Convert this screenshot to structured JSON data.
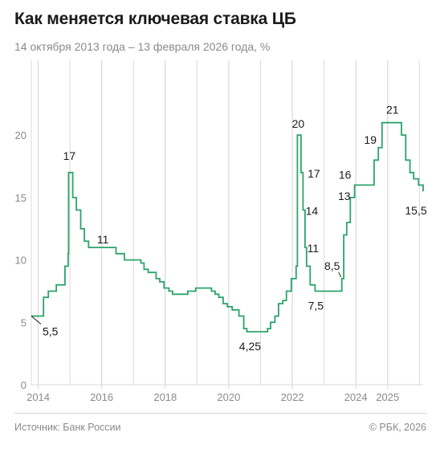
{
  "header": {
    "title": "Как меняется ключевая ставка ЦБ",
    "subtitle": "14 октября 2013 года – 13 февраля 2026 года, %"
  },
  "footer": {
    "source": "Источник: Банк России",
    "copyright": "© РБК, 2026"
  },
  "colors": {
    "line": "#2ca46a",
    "grid": "#d9d9d9",
    "axis": "#8a8a8a",
    "text": "#1a1a1a"
  },
  "chart_data": {
    "type": "line",
    "title": "Как меняется ключевая ставка ЦБ",
    "subtitle": "14 октября 2013 года – 13 февраля 2026 года, %",
    "step": true,
    "xlim": [
      "2013-10-14",
      "2026-02-13"
    ],
    "ylim": [
      0,
      26
    ],
    "yticks": [
      0,
      5,
      10,
      15,
      20
    ],
    "xticks": [
      {
        "date": "2014-01-01",
        "label": "2014"
      },
      {
        "date": "2016-01-01",
        "label": "2016"
      },
      {
        "date": "2018-01-01",
        "label": "2018"
      },
      {
        "date": "2020-01-01",
        "label": "2020"
      },
      {
        "date": "2022-01-01",
        "label": "2022"
      },
      {
        "date": "2024-01-01",
        "label": "2024"
      },
      {
        "date": "2025-01-01",
        "label": "2025"
      }
    ],
    "grid": true,
    "series": [
      {
        "points": [
          [
            "2013-10-14",
            5.5
          ],
          [
            "2014-03-03",
            7.0
          ],
          [
            "2014-04-28",
            7.5
          ],
          [
            "2014-07-28",
            8.0
          ],
          [
            "2014-11-05",
            9.5
          ],
          [
            "2014-12-12",
            10.5
          ],
          [
            "2014-12-16",
            17.0
          ],
          [
            "2015-02-02",
            15.0
          ],
          [
            "2015-03-16",
            14.0
          ],
          [
            "2015-05-05",
            12.5
          ],
          [
            "2015-06-16",
            11.5
          ],
          [
            "2015-08-03",
            11.0
          ],
          [
            "2016-06-14",
            10.5
          ],
          [
            "2016-09-19",
            10.0
          ],
          [
            "2017-03-27",
            9.75
          ],
          [
            "2017-05-02",
            9.25
          ],
          [
            "2017-06-19",
            9.0
          ],
          [
            "2017-09-18",
            8.5
          ],
          [
            "2017-10-30",
            8.25
          ],
          [
            "2017-12-18",
            7.75
          ],
          [
            "2018-02-12",
            7.5
          ],
          [
            "2018-03-26",
            7.25
          ],
          [
            "2018-09-17",
            7.5
          ],
          [
            "2018-12-17",
            7.75
          ],
          [
            "2019-06-17",
            7.5
          ],
          [
            "2019-07-29",
            7.25
          ],
          [
            "2019-09-09",
            7.0
          ],
          [
            "2019-10-28",
            6.5
          ],
          [
            "2019-12-16",
            6.25
          ],
          [
            "2020-02-10",
            6.0
          ],
          [
            "2020-04-27",
            5.5
          ],
          [
            "2020-06-22",
            4.5
          ],
          [
            "2020-07-27",
            4.25
          ],
          [
            "2021-03-22",
            4.5
          ],
          [
            "2021-04-26",
            5.0
          ],
          [
            "2021-06-15",
            5.5
          ],
          [
            "2021-07-26",
            6.5
          ],
          [
            "2021-09-13",
            6.75
          ],
          [
            "2021-10-25",
            7.5
          ],
          [
            "2021-12-20",
            8.5
          ],
          [
            "2022-02-14",
            9.5
          ],
          [
            "2022-02-28",
            20.0
          ],
          [
            "2022-04-11",
            17.0
          ],
          [
            "2022-05-04",
            14.0
          ],
          [
            "2022-05-27",
            11.0
          ],
          [
            "2022-06-14",
            9.5
          ],
          [
            "2022-07-25",
            8.0
          ],
          [
            "2022-09-19",
            7.5
          ],
          [
            "2023-07-24",
            8.5
          ],
          [
            "2023-08-15",
            12.0
          ],
          [
            "2023-09-18",
            13.0
          ],
          [
            "2023-10-30",
            15.0
          ],
          [
            "2023-12-18",
            16.0
          ],
          [
            "2024-07-29",
            18.0
          ],
          [
            "2024-09-16",
            19.0
          ],
          [
            "2024-10-28",
            21.0
          ],
          [
            "2025-06-09",
            20.0
          ],
          [
            "2025-07-28",
            18.0
          ],
          [
            "2025-09-15",
            17.0
          ],
          [
            "2025-10-27",
            16.5
          ],
          [
            "2025-12-22",
            16.0
          ],
          [
            "2026-02-13",
            15.5
          ]
        ]
      }
    ],
    "annotations": [
      {
        "label": "5,5",
        "date": "2013-10-14",
        "value": 5.5
      },
      {
        "label": "17",
        "date": "2014-12-16",
        "value": 17
      },
      {
        "label": "11",
        "date": "2016-01-15",
        "value": 11
      },
      {
        "label": "4,25",
        "date": "2020-07-27",
        "value": 4.25
      },
      {
        "label": "20",
        "date": "2022-02-28",
        "value": 20
      },
      {
        "label": "17",
        "date": "2022-04-11",
        "value": 17
      },
      {
        "label": "14",
        "date": "2022-05-04",
        "value": 14
      },
      {
        "label": "11",
        "date": "2022-05-27",
        "value": 11
      },
      {
        "label": "7,5",
        "date": "2022-09-19",
        "value": 7.5
      },
      {
        "label": "8,5",
        "date": "2023-07-24",
        "value": 8.5
      },
      {
        "label": "13",
        "date": "2023-09-18",
        "value": 13
      },
      {
        "label": "16",
        "date": "2023-12-18",
        "value": 16
      },
      {
        "label": "19",
        "date": "2024-09-16",
        "value": 19
      },
      {
        "label": "21",
        "date": "2024-10-28",
        "value": 21
      },
      {
        "label": "15,5",
        "date": "2026-02-13",
        "value": 15.5
      }
    ]
  }
}
